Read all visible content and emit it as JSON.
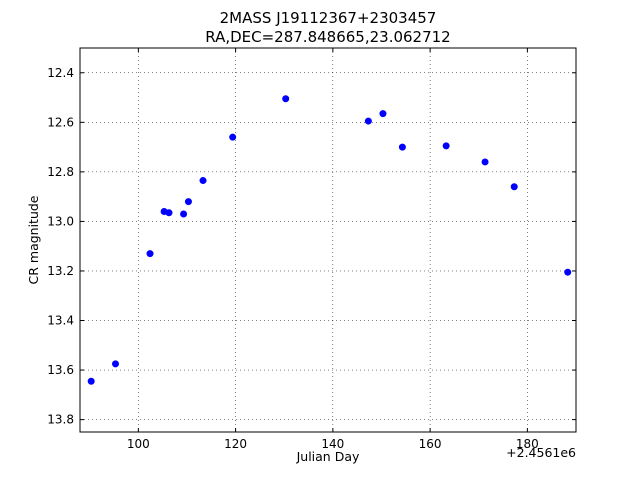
{
  "chart_data": {
    "type": "scatter",
    "title": "2MASS J19112367+2303457",
    "subtitle": "RA,DEC=287.848665,23.062712",
    "xlabel": "Julian Day",
    "ylabel": "CR magnitude",
    "x_offset_label": "+2.4561e6",
    "xlim": [
      88,
      190
    ],
    "ylim": [
      13.85,
      12.3
    ],
    "y_inverted": true,
    "grid": true,
    "marker_color": "#0000ff",
    "x_ticks": [
      100,
      120,
      140,
      160,
      180
    ],
    "y_ticks": [
      12.4,
      12.6,
      12.8,
      13.0,
      13.2,
      13.4,
      13.6,
      13.8
    ],
    "x_tick_labels": [
      "100",
      "120",
      "140",
      "160",
      "180"
    ],
    "y_tick_labels": [
      "12.4",
      "12.6",
      "12.8",
      "13.0",
      "13.2",
      "13.4",
      "13.6",
      "13.8"
    ],
    "series": [
      {
        "points": [
          {
            "x": 90.3,
            "y": 13.645
          },
          {
            "x": 95.3,
            "y": 13.575
          },
          {
            "x": 102.4,
            "y": 13.13
          },
          {
            "x": 105.3,
            "y": 12.96
          },
          {
            "x": 106.3,
            "y": 12.965
          },
          {
            "x": 109.3,
            "y": 12.97
          },
          {
            "x": 110.3,
            "y": 12.92
          },
          {
            "x": 113.3,
            "y": 12.835
          },
          {
            "x": 119.4,
            "y": 12.66
          },
          {
            "x": 130.3,
            "y": 12.505
          },
          {
            "x": 147.3,
            "y": 12.595
          },
          {
            "x": 150.3,
            "y": 12.565
          },
          {
            "x": 154.3,
            "y": 12.7
          },
          {
            "x": 163.3,
            "y": 12.695
          },
          {
            "x": 171.3,
            "y": 12.76
          },
          {
            "x": 177.3,
            "y": 12.86
          },
          {
            "x": 188.3,
            "y": 13.205
          }
        ]
      }
    ]
  }
}
